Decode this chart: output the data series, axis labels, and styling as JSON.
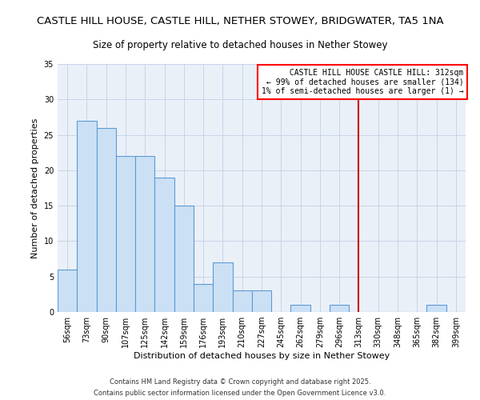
{
  "title": "CASTLE HILL HOUSE, CASTLE HILL, NETHER STOWEY, BRIDGWATER, TA5 1NA",
  "subtitle": "Size of property relative to detached houses in Nether Stowey",
  "xlabel": "Distribution of detached houses by size in Nether Stowey",
  "ylabel": "Number of detached properties",
  "categories": [
    "56sqm",
    "73sqm",
    "90sqm",
    "107sqm",
    "125sqm",
    "142sqm",
    "159sqm",
    "176sqm",
    "193sqm",
    "210sqm",
    "227sqm",
    "245sqm",
    "262sqm",
    "279sqm",
    "296sqm",
    "313sqm",
    "330sqm",
    "348sqm",
    "365sqm",
    "382sqm",
    "399sqm"
  ],
  "bar_values": [
    6,
    27,
    26,
    22,
    22,
    19,
    15,
    4,
    7,
    3,
    3,
    0,
    1,
    0,
    1,
    0,
    0,
    0,
    0,
    1,
    0
  ],
  "bar_fill_color": "#cce0f5",
  "bar_edge_color": "#5b9bd5",
  "red_line_index": 15,
  "red_line_color": "#cc0000",
  "ylim": [
    0,
    35
  ],
  "yticks": [
    0,
    5,
    10,
    15,
    20,
    25,
    30,
    35
  ],
  "legend_text_line1": " CASTLE HILL HOUSE CASTLE HILL: 312sqm",
  "legend_text_line2": "← 99% of detached houses are smaller (134)",
  "legend_text_line3": "1% of semi-detached houses are larger (1) →",
  "background_color": "#eaf0f8",
  "grid_color": "#c8d4e8",
  "footer_line1": "Contains HM Land Registry data © Crown copyright and database right 2025.",
  "footer_line2": "Contains public sector information licensed under the Open Government Licence v3.0.",
  "title_fontsize": 9.5,
  "subtitle_fontsize": 8.5,
  "axis_label_fontsize": 8,
  "tick_fontsize": 7,
  "legend_fontsize": 7,
  "footer_fontsize": 6
}
